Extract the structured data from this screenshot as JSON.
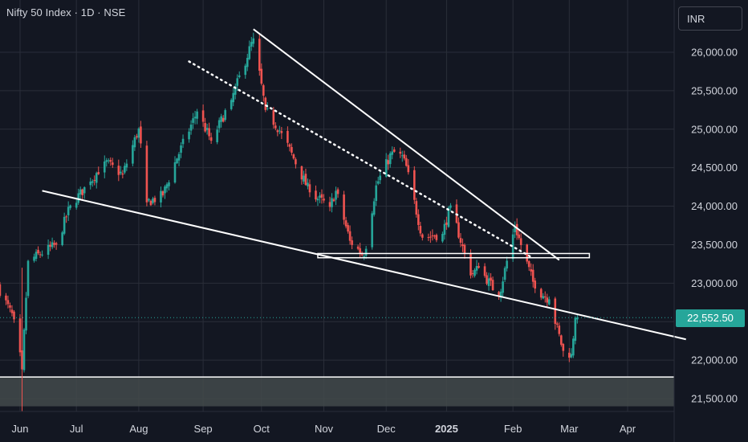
{
  "header": {
    "title": "Nifty 50 Index · 1D · NSE"
  },
  "toolbar": {
    "currency_label": "INR"
  },
  "last_price_label": "22,552.50",
  "colors": {
    "background": "#131722",
    "up": "#26a69a",
    "down": "#ef5350",
    "lines": "#ffffff",
    "grid": "#2a2e39",
    "zone": "#434a4b"
  },
  "chart_data": {
    "type": "candlestick",
    "y_axis": {
      "ticks": [
        21500,
        22000,
        22500,
        23000,
        23500,
        24000,
        24500,
        25000,
        25500,
        26000
      ],
      "tick_labels": [
        "21,500.00",
        "22,000.00",
        "22,500.00",
        "23,000.00",
        "23,500.00",
        "24,000.00",
        "24,500.00",
        "25,000.00",
        "25,500.00",
        "26,000.00"
      ]
    },
    "x_axis": {
      "ticks": [
        {
          "label": "Jun",
          "date": "2024-06-03"
        },
        {
          "label": "Jul",
          "date": "2024-07-01"
        },
        {
          "label": "Aug",
          "date": "2024-08-01"
        },
        {
          "label": "Sep",
          "date": "2024-09-02"
        },
        {
          "label": "Oct",
          "date": "2024-10-01"
        },
        {
          "label": "Nov",
          "date": "2024-11-01"
        },
        {
          "label": "Dec",
          "date": "2024-12-02"
        },
        {
          "label": "2025",
          "date": "2025-01-01",
          "bold": true
        },
        {
          "label": "Feb",
          "date": "2025-02-03"
        },
        {
          "label": "Mar",
          "date": "2025-03-03"
        },
        {
          "label": "Apr",
          "date": "2025-04-01"
        }
      ]
    },
    "last_price": 22552.5,
    "anchors": [
      {
        "date": "2024-05-23",
        "close": 22960
      },
      {
        "date": "2024-05-31",
        "close": 22530
      },
      {
        "date": "2024-06-04",
        "close": 21880
      },
      {
        "date": "2024-06-07",
        "close": 23290
      },
      {
        "date": "2024-06-21",
        "close": 23500
      },
      {
        "date": "2024-06-28",
        "close": 24010
      },
      {
        "date": "2024-07-08",
        "close": 24320
      },
      {
        "date": "2024-07-15",
        "close": 24580
      },
      {
        "date": "2024-07-24",
        "close": 24410
      },
      {
        "date": "2024-08-01",
        "close": 25010
      },
      {
        "date": "2024-08-05",
        "close": 24050
      },
      {
        "date": "2024-08-13",
        "close": 24140
      },
      {
        "date": "2024-08-19",
        "close": 24570
      },
      {
        "date": "2024-08-30",
        "close": 25230
      },
      {
        "date": "2024-09-06",
        "close": 24850
      },
      {
        "date": "2024-09-16",
        "close": 25380
      },
      {
        "date": "2024-09-27",
        "close": 26180
      },
      {
        "date": "2024-10-03",
        "close": 25250
      },
      {
        "date": "2024-10-11",
        "close": 24950
      },
      {
        "date": "2024-10-25",
        "close": 24180
      },
      {
        "date": "2024-11-04",
        "close": 23990
      },
      {
        "date": "2024-11-07",
        "close": 24200
      },
      {
        "date": "2024-11-14",
        "close": 23550
      },
      {
        "date": "2024-11-21",
        "close": 23350
      },
      {
        "date": "2024-11-27",
        "close": 24270
      },
      {
        "date": "2024-12-05",
        "close": 24710
      },
      {
        "date": "2024-12-11",
        "close": 24620
      },
      {
        "date": "2024-12-20",
        "close": 23590
      },
      {
        "date": "2024-12-30",
        "close": 23640
      },
      {
        "date": "2025-01-03",
        "close": 24010
      },
      {
        "date": "2025-01-13",
        "close": 23100
      },
      {
        "date": "2025-01-17",
        "close": 23200
      },
      {
        "date": "2025-01-27",
        "close": 22830
      },
      {
        "date": "2025-02-04",
        "close": 23740
      },
      {
        "date": "2025-02-14",
        "close": 22930
      },
      {
        "date": "2025-02-21",
        "close": 22790
      },
      {
        "date": "2025-02-28",
        "close": 22120
      },
      {
        "date": "2025-03-04",
        "close": 22080
      },
      {
        "date": "2025-03-06",
        "close": 22550
      },
      {
        "date": "2025-03-07",
        "close": 22552.5
      }
    ],
    "drawings": [
      {
        "kind": "trendline",
        "from": {
          "date": "2024-06-14",
          "price": 24200
        },
        "to": {
          "date": "2025-04-30",
          "price": 22270
        }
      },
      {
        "kind": "trendline",
        "from": {
          "date": "2024-09-27",
          "price": 26300
        },
        "to": {
          "date": "2025-02-26",
          "price": 23300
        }
      },
      {
        "kind": "dotted-line",
        "from": {
          "date": "2024-08-26",
          "price": 25880
        },
        "to": {
          "date": "2025-02-12",
          "price": 23340
        }
      },
      {
        "kind": "rectangle",
        "from": {
          "date": "2024-10-29",
          "price": 23385
        },
        "to": {
          "date": "2025-03-13",
          "price": 23330
        }
      },
      {
        "kind": "zone",
        "from_price": 21780,
        "to_price": 21400
      }
    ]
  }
}
